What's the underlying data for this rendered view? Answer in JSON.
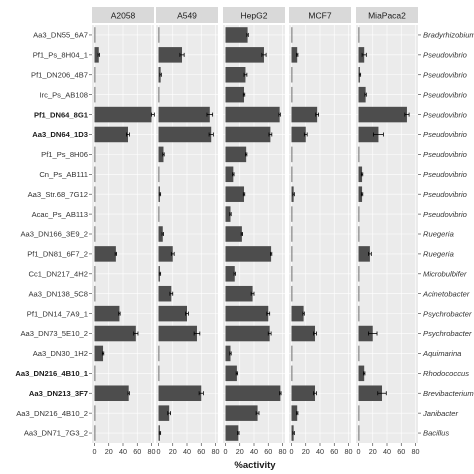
{
  "chart_data": {
    "type": "bar",
    "orientation": "horizontal",
    "facets": [
      "A2058",
      "A549",
      "HepG2",
      "MCF7",
      "MiaPaca2"
    ],
    "xlabel": "%activity",
    "xlim": [
      0,
      80
    ],
    "xticks": [
      "0",
      "20",
      "40",
      "60",
      "80"
    ],
    "grid": true,
    "rows": [
      {
        "strain": "Aa3_DN55_6A7",
        "genus": "Bradyrhizobium",
        "bold": false
      },
      {
        "strain": "Pf1_Ps_8H04_1",
        "genus": "Pseudovibrio",
        "bold": false
      },
      {
        "strain": "Pf1_DN206_4B7",
        "genus": "Pseudovibrio",
        "bold": false
      },
      {
        "strain": "Irc_Ps_AB108",
        "genus": "Pseudovibrio",
        "bold": false
      },
      {
        "strain": "Pf1_DN64_8G1",
        "genus": "Pseudovibrio",
        "bold": true
      },
      {
        "strain": "Aa3_DN64_1D3",
        "genus": "Pseudovibrio",
        "bold": true
      },
      {
        "strain": "Pf1_Ps_8H06",
        "genus": "Pseudovibrio",
        "bold": false
      },
      {
        "strain": "Cn_Ps_AB111",
        "genus": "Pseudovibrio",
        "bold": false
      },
      {
        "strain": "Aa3_Str.68_7G12",
        "genus": "Pseudovibrio",
        "bold": false
      },
      {
        "strain": "Acac_Ps_AB113",
        "genus": "Pseudovibrio",
        "bold": false
      },
      {
        "strain": "Aa3_DN166_3E9_2",
        "genus": "Ruegeria",
        "bold": false
      },
      {
        "strain": "Pf1_DN81_6F7_2",
        "genus": "Ruegeria",
        "bold": false
      },
      {
        "strain": "Cc1_DN217_4H2",
        "genus": "Microbulbifer",
        "bold": false
      },
      {
        "strain": "Aa3_DN138_5C8",
        "genus": "Acinetobacter",
        "bold": false
      },
      {
        "strain": "Pf1_DN14_7A9_1",
        "genus": "Psychrobacter",
        "bold": false
      },
      {
        "strain": "Aa3_DN73_5E10_2",
        "genus": "Psychrobacter",
        "bold": false
      },
      {
        "strain": "Aa3_DN30_1H2",
        "genus": "Aquimarina",
        "bold": false
      },
      {
        "strain": "Aa3_DN216_4B10_1",
        "genus": "Rhodococcus",
        "bold": true
      },
      {
        "strain": "Aa3_DN213_3F7",
        "genus": "Brevibacterium",
        "bold": true
      },
      {
        "strain": "Aa3_DN216_4B10_2",
        "genus": "Janibacter",
        "bold": false
      },
      {
        "strain": "Aa3_DN71_7G3_2",
        "genus": "Bacillus",
        "bold": false
      }
    ],
    "series": [
      {
        "facet": "A2058",
        "values": [
          1,
          6,
          1,
          1,
          82,
          47,
          1,
          1,
          1,
          1,
          1,
          30,
          1,
          1,
          35,
          58,
          12,
          1,
          48,
          1,
          1
        ],
        "errors": [
          0,
          1,
          0,
          0,
          2,
          2,
          0,
          0,
          0,
          0,
          0,
          1,
          0,
          0,
          1,
          3,
          1,
          0,
          1,
          0,
          0
        ]
      },
      {
        "facet": "A549",
        "values": [
          1,
          33,
          3,
          1,
          72,
          74,
          7,
          1,
          2,
          1,
          6,
          20,
          2,
          18,
          40,
          54,
          1,
          1,
          60,
          15,
          2
        ],
        "errors": [
          0,
          3,
          1,
          0,
          4,
          3,
          1,
          0,
          1,
          0,
          1,
          2,
          1,
          2,
          2,
          4,
          0,
          0,
          3,
          2,
          1
        ]
      },
      {
        "facet": "HepG2",
        "values": [
          31,
          54,
          28,
          26,
          76,
          63,
          29,
          11,
          26,
          7,
          23,
          64,
          13,
          38,
          60,
          62,
          7,
          16,
          77,
          45,
          18
        ],
        "errors": [
          1,
          3,
          2,
          1,
          1,
          2,
          1,
          1,
          1,
          1,
          1,
          1,
          1,
          2,
          2,
          2,
          1,
          1,
          1,
          2,
          1
        ]
      },
      {
        "facet": "MCF7",
        "values": [
          1,
          8,
          1,
          1,
          36,
          20,
          1,
          1,
          3,
          1,
          1,
          1,
          1,
          1,
          17,
          33,
          1,
          1,
          33,
          8,
          3
        ],
        "errors": [
          0,
          1,
          0,
          0,
          2,
          2,
          0,
          0,
          1,
          0,
          0,
          0,
          0,
          0,
          1,
          2,
          0,
          0,
          2,
          1,
          1
        ]
      },
      {
        "facet": "MiaPaca2",
        "values": [
          1,
          8,
          2,
          10,
          68,
          28,
          1,
          5,
          5,
          1,
          1,
          16,
          1,
          1,
          1,
          20,
          1,
          8,
          33,
          1,
          1
        ],
        "errors": [
          0,
          3,
          1,
          1,
          3,
          7,
          0,
          1,
          1,
          0,
          0,
          2,
          0,
          0,
          0,
          6,
          0,
          1,
          6,
          0,
          0
        ]
      }
    ]
  }
}
